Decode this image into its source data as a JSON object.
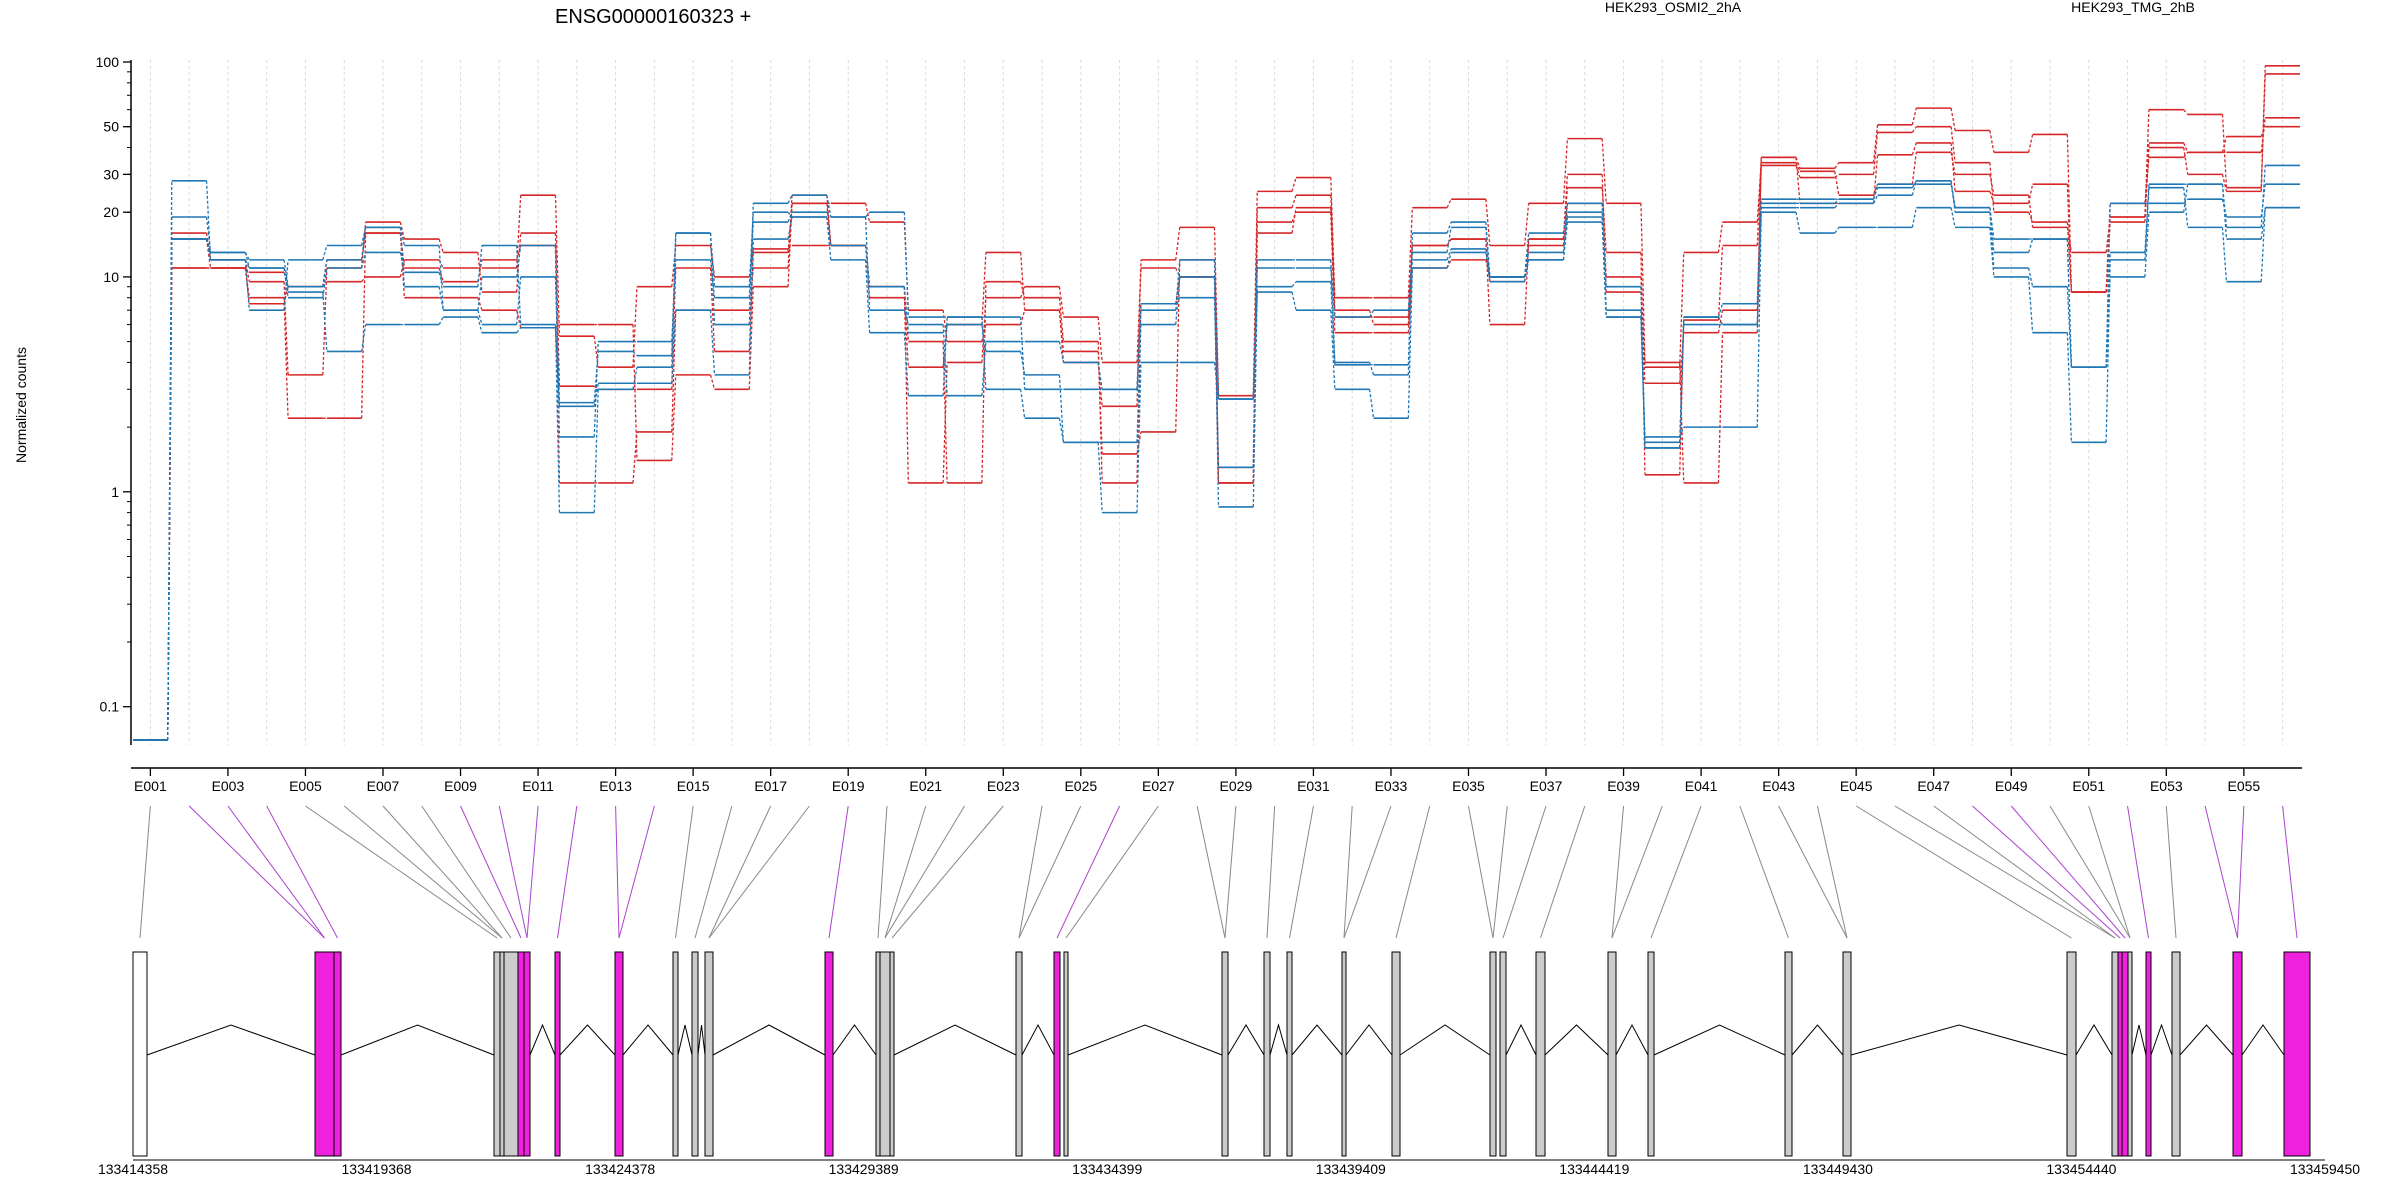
{
  "chart_data": {
    "type": "line",
    "title": "ENSG00000160323 +",
    "ylabel": "Normalized counts",
    "yscale": "log",
    "ylim": [
      0.07,
      100
    ],
    "yticks": [
      0.1,
      1,
      10,
      20,
      30,
      50,
      100
    ],
    "grid": true,
    "exons": [
      "E001",
      "E002",
      "E003",
      "E004",
      "E005",
      "E006",
      "E007",
      "E008",
      "E009",
      "E010",
      "E011",
      "E012",
      "E013",
      "E014",
      "E015",
      "E016",
      "E017",
      "E018",
      "E019",
      "E020",
      "E021",
      "E022",
      "E023",
      "E024",
      "E025",
      "E026",
      "E027",
      "E028",
      "E029",
      "E030",
      "E031",
      "E032",
      "E033",
      "E034",
      "E035",
      "E036",
      "E037",
      "E038",
      "E039",
      "E040",
      "E041",
      "E042",
      "E043",
      "E044",
      "E045",
      "E046",
      "E047",
      "E048",
      "E049",
      "E050",
      "E051",
      "E052",
      "E053",
      "E054",
      "E055",
      "E056"
    ],
    "exon_tick_labels": [
      "E001",
      "E003",
      "E005",
      "E007",
      "E009",
      "E011",
      "E013",
      "E015",
      "E017",
      "E019",
      "E021",
      "E023",
      "E025",
      "E027",
      "E029",
      "E031",
      "E033",
      "E035",
      "E037",
      "E039",
      "E041",
      "E043",
      "E045",
      "E047",
      "E049",
      "E051",
      "E053",
      "E055"
    ],
    "conditions": [
      {
        "name": "HEK293_OSMI2_2hA",
        "color": "#d62728"
      },
      {
        "name": "HEK293_TMG_2hB",
        "color": "#1f77b4"
      }
    ],
    "series": [
      {
        "condition": "HEK293_OSMI2_2hA",
        "values": [
          0.07,
          15,
          11,
          10.5,
          9,
          9.5,
          10,
          12,
          11,
          11,
          24,
          5.3,
          3.8,
          9,
          14,
          10,
          13.5,
          14,
          14,
          9,
          1.1,
          4,
          8,
          9,
          6.5,
          4,
          11,
          10,
          1.1,
          21,
          24,
          7,
          6,
          14,
          15,
          9.5,
          14,
          22,
          10,
          3.8,
          13,
          18,
          34,
          31,
          24,
          27,
          38,
          30,
          24,
          17,
          13,
          19,
          40,
          30,
          25,
          88
        ]
      },
      {
        "condition": "HEK293_OSMI2_2hA",
        "values": [
          0.07,
          16,
          12,
          9.5,
          3.5,
          11,
          18,
          15,
          13,
          8.5,
          16,
          3.1,
          3,
          3,
          11,
          4.5,
          13,
          22,
          14,
          9,
          5,
          1.1,
          9.5,
          8,
          5,
          1.1,
          7.5,
          10,
          1.3,
          18,
          20,
          6.5,
          6.5,
          14,
          15,
          6,
          15,
          30,
          8.5,
          3.2,
          5.5,
          7,
          33,
          29,
          30,
          47,
          50,
          34,
          20,
          18,
          8.5,
          22,
          36,
          38,
          45,
          50
        ]
      },
      {
        "condition": "HEK293_OSMI2_2hA",
        "values": [
          0.07,
          11,
          11,
          7.5,
          9,
          12,
          16,
          11,
          9.5,
          12,
          14,
          1.1,
          1.1,
          1.9,
          7,
          7,
          11,
          24,
          14,
          8,
          3.8,
          6,
          13,
          7,
          4,
          2.5,
          12,
          17,
          2.8,
          25,
          29,
          8,
          8,
          21,
          23,
          14,
          22,
          44,
          22,
          4,
          1.1,
          5.5,
          36,
          32,
          34,
          51,
          61,
          48,
          38,
          46,
          8.5,
          19,
          60,
          57,
          26,
          96
        ]
      },
      {
        "condition": "HEK293_OSMI2_2hA",
        "values": [
          0.07,
          11,
          11,
          8,
          2.2,
          2.2,
          16,
          8,
          8,
          7,
          5.8,
          6,
          6,
          1.4,
          3.5,
          3,
          9,
          22,
          22,
          18,
          7,
          5,
          6,
          7,
          4.5,
          1.5,
          1.9,
          12,
          1.1,
          16,
          21,
          5.5,
          5.5,
          11,
          12,
          10,
          15,
          26,
          13,
          1.2,
          6.3,
          14,
          36,
          22,
          22,
          37,
          42,
          25,
          22,
          27,
          8.5,
          18,
          42,
          38,
          38,
          55
        ]
      },
      {
        "condition": "HEK293_TMG_2hB",
        "values": [
          0.07,
          28,
          12,
          7,
          12,
          14,
          17,
          9,
          7,
          6,
          10,
          2.6,
          4.5,
          4.3,
          16,
          6,
          22,
          24,
          19,
          7,
          6,
          2.8,
          5,
          5,
          4,
          3,
          7,
          12,
          2.7,
          12,
          12,
          4,
          3.5,
          16,
          18,
          10,
          16,
          22,
          9,
          1.6,
          6.5,
          7.5,
          23,
          23,
          23,
          26,
          28,
          20,
          11,
          9,
          3.8,
          13,
          27,
          27,
          17,
          33
        ]
      },
      {
        "condition": "HEK293_TMG_2hB",
        "values": [
          0.07,
          19,
          13,
          12,
          9,
          12,
          17,
          14,
          7,
          10,
          14,
          1.8,
          5,
          5,
          12,
          8,
          18,
          20,
          19,
          20,
          6.5,
          6.5,
          6.5,
          3,
          3,
          3,
          7.5,
          8,
          1.3,
          11,
          11,
          6.5,
          7,
          13,
          17,
          10,
          13,
          20,
          7,
          1.6,
          6,
          6,
          22,
          22,
          23,
          27,
          27,
          21,
          15,
          15,
          3.8,
          22,
          22,
          23,
          19,
          27
        ]
      },
      {
        "condition": "HEK293_TMG_2hB",
        "values": [
          0.07,
          15,
          13,
          11,
          8,
          11,
          13,
          10.5,
          9,
          14,
          6,
          0.8,
          3,
          3.8,
          16,
          9,
          20,
          19,
          14,
          9,
          5.5,
          6,
          4.5,
          3.5,
          1.7,
          1.7,
          6,
          10,
          0.85,
          9,
          9.5,
          3.9,
          3.9,
          12,
          13.5,
          10,
          12,
          19,
          6.5,
          1.7,
          6.5,
          6,
          21,
          21,
          22,
          24,
          28,
          21,
          13,
          15,
          3.8,
          10,
          20,
          27,
          15,
          21
        ]
      },
      {
        "condition": "HEK293_TMG_2hB",
        "values": [
          0.07,
          15,
          12,
          11,
          8.5,
          4.5,
          6,
          6,
          6.5,
          5.5,
          5.8,
          2.5,
          3.2,
          3.2,
          7,
          3.5,
          15,
          19,
          12,
          5.5,
          2.8,
          6.5,
          3,
          2.2,
          1.7,
          0.8,
          4,
          4,
          2.7,
          8.5,
          7,
          3,
          2.2,
          11,
          13,
          9.5,
          12,
          18,
          6.5,
          1.8,
          2,
          2,
          20,
          16,
          17,
          17,
          21,
          17,
          10,
          5.5,
          1.7,
          12,
          26,
          17,
          9.5,
          21
        ]
      }
    ],
    "gene_axis": {
      "start": 133414358,
      "end": 133459450,
      "tick_labels": [
        "133414358",
        "133419368",
        "133424378",
        "133429389",
        "133434399",
        "133439409",
        "133444419",
        "133449430",
        "133454440",
        "133459450"
      ]
    }
  }
}
